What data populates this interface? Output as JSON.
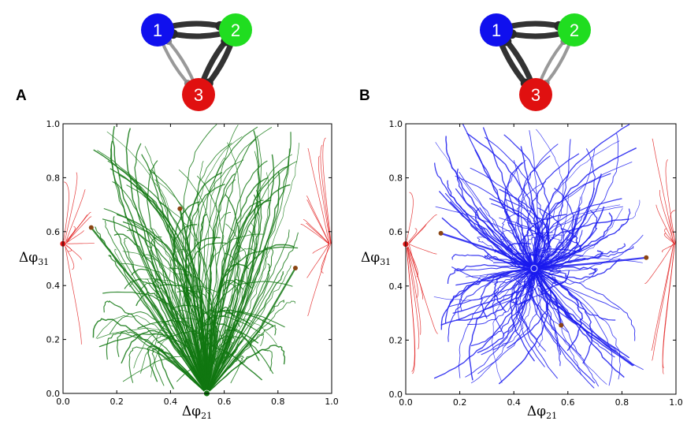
{
  "colors": {
    "node1": "#1010ee",
    "node2": "#20dd20",
    "node3": "#e01010",
    "flow_A": "#117711",
    "flow_B": "#1a1aee",
    "flow_sync": "#e01818",
    "saddle": "#8b4513",
    "frame": "#000000",
    "coupling_strong": "#333333",
    "coupling_weak": "#999999"
  },
  "chart_data": [
    {
      "panel": "A",
      "type": "scatter",
      "title": "",
      "xlabel": "Δφ",
      "xlabel_sub": "21",
      "ylabel": "Δφ",
      "ylabel_sub": "31",
      "xlim": [
        0,
        1
      ],
      "ylim": [
        0,
        1
      ],
      "x_ticks": [
        "0.0",
        "0.2",
        "0.4",
        "0.6",
        "0.8",
        "1.0"
      ],
      "y_ticks": [
        "0.0",
        "0.2",
        "0.4",
        "0.6",
        "0.8",
        "1.0"
      ],
      "motif_node_labels": [
        "1",
        "2",
        "3"
      ],
      "motif_coupling": {
        "1-2": "strong",
        "2-3": "strong",
        "1-3": "weak"
      },
      "fixed_points": [
        {
          "x": 0.0,
          "y": 0.555,
          "kind": "stable-sync",
          "color": "red"
        },
        {
          "x": 0.535,
          "y": 0.0,
          "kind": "stable",
          "color": "green"
        },
        {
          "x": 0.105,
          "y": 0.615,
          "kind": "saddle",
          "color": "brown"
        },
        {
          "x": 0.435,
          "y": 0.685,
          "kind": "saddle",
          "color": "brown"
        },
        {
          "x": 0.865,
          "y": 0.465,
          "kind": "saddle",
          "color": "brown"
        }
      ]
    },
    {
      "panel": "B",
      "type": "scatter",
      "title": "",
      "xlabel": "Δφ",
      "xlabel_sub": "21",
      "ylabel": "Δφ",
      "ylabel_sub": "31",
      "xlim": [
        0,
        1
      ],
      "ylim": [
        0,
        1
      ],
      "x_ticks": [
        "0.0",
        "0.2",
        "0.4",
        "0.6",
        "0.8",
        "1.0"
      ],
      "y_ticks": [
        "0.0",
        "0.2",
        "0.4",
        "0.6",
        "0.8",
        "1.0"
      ],
      "motif_node_labels": [
        "1",
        "2",
        "3"
      ],
      "motif_coupling": {
        "1-2": "strong",
        "1-3": "strong",
        "2-3": "weak"
      },
      "fixed_points": [
        {
          "x": 0.0,
          "y": 0.555,
          "kind": "stable-sync",
          "color": "red"
        },
        {
          "x": 0.475,
          "y": 0.465,
          "kind": "stable",
          "color": "blue"
        },
        {
          "x": 0.13,
          "y": 0.595,
          "kind": "saddle",
          "color": "brown"
        },
        {
          "x": 0.575,
          "y": 0.255,
          "kind": "saddle",
          "color": "brown"
        },
        {
          "x": 0.89,
          "y": 0.505,
          "kind": "saddle",
          "color": "brown"
        }
      ]
    }
  ]
}
